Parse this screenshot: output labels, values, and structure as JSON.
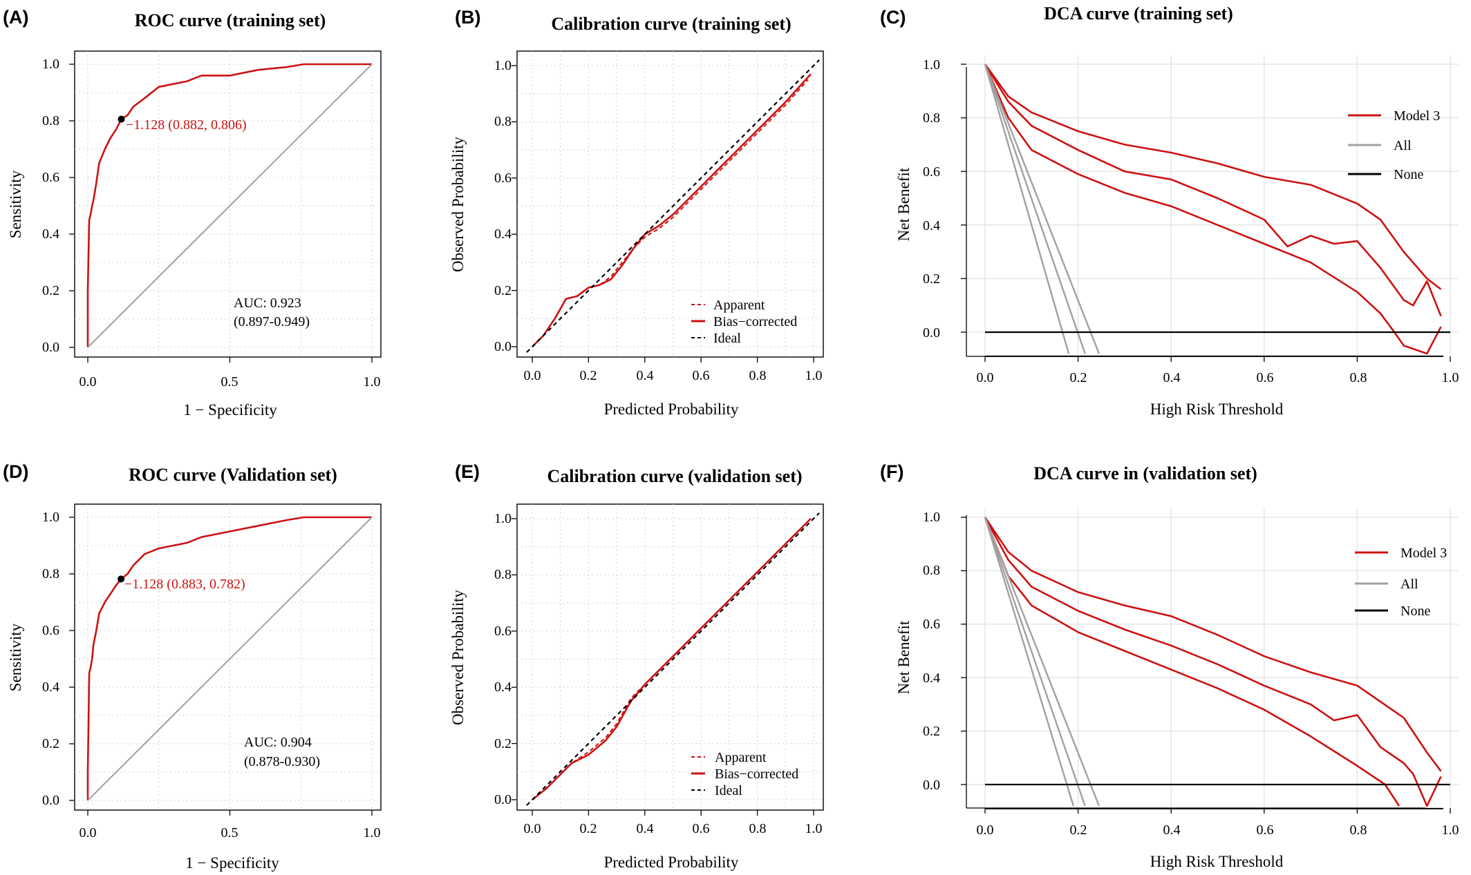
{
  "colors": {
    "model": "#cc1111",
    "gray": "#a0a0a0",
    "black": "#000000",
    "grid": "#e6e6e6"
  },
  "panels": [
    {
      "letter": "(A)",
      "title": "ROC curve (training set)",
      "xlabel": "1 − Specificity",
      "ylabel": "Sensitivity",
      "xticks": [
        "0.0",
        "0.5",
        "1.0"
      ],
      "yticks": [
        "0.0",
        "0.2",
        "0.4",
        "0.6",
        "0.8",
        "1.0"
      ],
      "threshold_label": "−1.128 (0.882, 0.806)",
      "auc_label": "AUC: 0.923",
      "ci_label": "(0.897-0.949)"
    },
    {
      "letter": "(B)",
      "title": "Calibration curve (training set)",
      "xlabel": "Predicted Probability",
      "ylabel": "Observed Probability",
      "xticks": [
        "0.0",
        "0.2",
        "0.4",
        "0.6",
        "0.8",
        "1.0"
      ],
      "yticks": [
        "0.0",
        "0.2",
        "0.4",
        "0.6",
        "0.8",
        "1.0"
      ],
      "legend": [
        "Apparent",
        "Bias−corrected",
        "Ideal"
      ]
    },
    {
      "letter": "(C)",
      "title": "DCA curve (training set)",
      "xlabel": "High Risk Threshold",
      "ylabel": "Net Benefit",
      "xticks": [
        "0.0",
        "0.2",
        "0.4",
        "0.6",
        "0.8",
        "1.0"
      ],
      "yticks": [
        "0.0",
        "0.2",
        "0.4",
        "0.6",
        "0.8",
        "1.0"
      ],
      "legend": [
        "Model 3",
        "All",
        "None"
      ]
    },
    {
      "letter": "(D)",
      "title": "ROC curve (Validation set)",
      "xlabel": "1 − Specificity",
      "ylabel": "Sensitivity",
      "xticks": [
        "0.0",
        "0.5",
        "1.0"
      ],
      "yticks": [
        "0.0",
        "0.2",
        "0.4",
        "0.6",
        "0.8",
        "1.0"
      ],
      "threshold_label": "−1.128 (0.883, 0.782)",
      "auc_label": "AUC: 0.904",
      "ci_label": "(0.878-0.930)"
    },
    {
      "letter": "(E)",
      "title": "Calibration curve (validation set)",
      "xlabel": "Predicted Probability",
      "ylabel": "Observed Probability",
      "xticks": [
        "0.0",
        "0.2",
        "0.4",
        "0.6",
        "0.8",
        "1.0"
      ],
      "yticks": [
        "0.0",
        "0.2",
        "0.4",
        "0.6",
        "0.8",
        "1.0"
      ],
      "legend": [
        "Apparent",
        "Bias−corrected",
        "Ideal"
      ]
    },
    {
      "letter": "(F)",
      "title": "DCA curve in (validation set)",
      "xlabel": "High Risk Threshold",
      "ylabel": "Net Benefit",
      "xticks": [
        "0.0",
        "0.2",
        "0.4",
        "0.6",
        "0.8",
        "1.0"
      ],
      "yticks": [
        "0.0",
        "0.2",
        "0.4",
        "0.6",
        "0.8",
        "1.0"
      ],
      "legend": [
        "Model 3",
        "All",
        "None"
      ]
    }
  ],
  "chart_data": [
    {
      "type": "line",
      "panel": "A",
      "title": "ROC curve (training set)",
      "xlabel": "1 − Specificity",
      "ylabel": "Sensitivity",
      "xlim": [
        0,
        1
      ],
      "ylim": [
        0,
        1
      ],
      "grid": true,
      "x_axis_reversed_specificity": true,
      "series": [
        {
          "name": "",
          "x": [
            0,
            0,
            0.003,
            0.005,
            0.01,
            0.015,
            0.02,
            0.03,
            0.04,
            0.06,
            0.08,
            0.1,
            0.118,
            0.14,
            0.16,
            0.2,
            0.25,
            0.3,
            0.35,
            0.4,
            0.5,
            0.6,
            0.7,
            0.76,
            0.85,
            0.95,
            1.0
          ],
          "y": [
            0,
            0.2,
            0.35,
            0.45,
            0.47,
            0.5,
            0.52,
            0.58,
            0.65,
            0.7,
            0.74,
            0.77,
            0.806,
            0.82,
            0.85,
            0.88,
            0.92,
            0.93,
            0.94,
            0.96,
            0.96,
            0.98,
            0.99,
            1.0,
            1.0,
            1.0,
            1.0
          ]
        },
        {
          "name": "",
          "x": [
            0,
            1
          ],
          "y": [
            0,
            1
          ]
        }
      ],
      "threshold_point": {
        "x": 0.118,
        "y": 0.806
      },
      "annotations": [
        "−1.128 (0.882, 0.806)",
        "AUC: 0.923",
        "(0.897-0.949)"
      ]
    },
    {
      "type": "line",
      "panel": "B",
      "title": "Calibration curve (training set)",
      "xlabel": "Predicted Probability",
      "ylabel": "Observed Probability",
      "xlim": [
        0,
        1
      ],
      "ylim": [
        0,
        1
      ],
      "grid": true,
      "legend_position": "bottom-right",
      "series": [
        {
          "name": "Apparent",
          "x": [
            0.0,
            0.04,
            0.08,
            0.12,
            0.16,
            0.2,
            0.24,
            0.28,
            0.32,
            0.36,
            0.4,
            0.45,
            0.5,
            0.6,
            0.7,
            0.8,
            0.9,
            0.98
          ],
          "y": [
            0.0,
            0.04,
            0.1,
            0.17,
            0.18,
            0.21,
            0.22,
            0.25,
            0.3,
            0.35,
            0.39,
            0.42,
            0.46,
            0.56,
            0.66,
            0.76,
            0.86,
            0.95
          ]
        },
        {
          "name": "Bias−corrected",
          "x": [
            0.0,
            0.04,
            0.08,
            0.12,
            0.16,
            0.2,
            0.24,
            0.28,
            0.32,
            0.36,
            0.4,
            0.45,
            0.5,
            0.6,
            0.7,
            0.8,
            0.9,
            0.99
          ],
          "y": [
            0.0,
            0.04,
            0.1,
            0.17,
            0.18,
            0.21,
            0.22,
            0.24,
            0.29,
            0.35,
            0.4,
            0.43,
            0.47,
            0.57,
            0.67,
            0.77,
            0.87,
            0.97
          ]
        },
        {
          "name": "Ideal",
          "x": [
            -0.02,
            1.02
          ],
          "y": [
            -0.02,
            1.02
          ]
        }
      ]
    },
    {
      "type": "line",
      "panel": "C",
      "title": "DCA curve (training set)",
      "xlabel": "High Risk Threshold",
      "ylabel": "Net Benefit",
      "xlim": [
        0,
        1
      ],
      "ylim": [
        -0.08,
        1.0
      ],
      "grid": true,
      "legend_position": "top-right",
      "series": [
        {
          "name": "Model 3",
          "x": [
            0.0,
            0.05,
            0.1,
            0.2,
            0.3,
            0.4,
            0.5,
            0.6,
            0.7,
            0.8,
            0.85,
            0.9,
            0.95,
            0.98
          ],
          "y": [
            1.0,
            0.88,
            0.82,
            0.75,
            0.7,
            0.67,
            0.63,
            0.58,
            0.55,
            0.48,
            0.42,
            0.3,
            0.2,
            0.16
          ]
        },
        {
          "name": "Model 3",
          "x": [
            0.0,
            0.05,
            0.1,
            0.2,
            0.3,
            0.4,
            0.5,
            0.6,
            0.65,
            0.7,
            0.75,
            0.8,
            0.85,
            0.9,
            0.92,
            0.95,
            0.98
          ],
          "y": [
            1.0,
            0.86,
            0.77,
            0.68,
            0.6,
            0.57,
            0.5,
            0.42,
            0.32,
            0.36,
            0.33,
            0.34,
            0.24,
            0.12,
            0.1,
            0.19,
            0.06
          ]
        },
        {
          "name": "Model 3",
          "x": [
            0.0,
            0.05,
            0.1,
            0.2,
            0.3,
            0.4,
            0.5,
            0.6,
            0.7,
            0.8,
            0.85,
            0.88,
            0.9,
            0.95,
            0.98
          ],
          "y": [
            1.0,
            0.8,
            0.68,
            0.59,
            0.52,
            0.47,
            0.4,
            0.33,
            0.26,
            0.15,
            0.07,
            0.0,
            -0.05,
            -0.08,
            0.02
          ]
        },
        {
          "name": "All",
          "x": [
            0.0,
            0.18
          ],
          "y": [
            1.0,
            -0.08
          ]
        },
        {
          "name": "All",
          "x": [
            0.0,
            0.215
          ],
          "y": [
            1.0,
            -0.08
          ]
        },
        {
          "name": "All",
          "x": [
            0.0,
            0.245
          ],
          "y": [
            1.0,
            -0.08
          ]
        },
        {
          "name": "None",
          "x": [
            0.0,
            1.0
          ],
          "y": [
            0.0,
            0.0
          ]
        }
      ]
    },
    {
      "type": "line",
      "panel": "D",
      "title": "ROC curve (Validation set)",
      "xlabel": "1 − Specificity",
      "ylabel": "Sensitivity",
      "xlim": [
        0,
        1
      ],
      "ylim": [
        0,
        1
      ],
      "grid": true,
      "series": [
        {
          "name": "",
          "x": [
            0,
            0,
            0.003,
            0.005,
            0.01,
            0.015,
            0.02,
            0.03,
            0.04,
            0.06,
            0.08,
            0.1,
            0.117,
            0.14,
            0.16,
            0.2,
            0.25,
            0.3,
            0.35,
            0.4,
            0.5,
            0.6,
            0.7,
            0.76,
            0.85,
            0.95,
            1.0
          ],
          "y": [
            0,
            0.1,
            0.3,
            0.45,
            0.47,
            0.5,
            0.55,
            0.6,
            0.66,
            0.7,
            0.73,
            0.76,
            0.782,
            0.8,
            0.83,
            0.87,
            0.89,
            0.9,
            0.91,
            0.93,
            0.95,
            0.97,
            0.99,
            1.0,
            1.0,
            1.0,
            1.0
          ]
        },
        {
          "name": "",
          "x": [
            0,
            1
          ],
          "y": [
            0,
            1
          ]
        }
      ],
      "threshold_point": {
        "x": 0.117,
        "y": 0.782
      },
      "annotations": [
        "−1.128 (0.883, 0.782)",
        "AUC: 0.904",
        "(0.878-0.930)"
      ]
    },
    {
      "type": "line",
      "panel": "E",
      "title": "Calibration curve (validation set)",
      "xlabel": "Predicted Probability",
      "ylabel": "Observed Probability",
      "xlim": [
        0,
        1
      ],
      "ylim": [
        0,
        1
      ],
      "grid": true,
      "legend_position": "bottom-right",
      "series": [
        {
          "name": "Apparent",
          "x": [
            0.0,
            0.05,
            0.1,
            0.14,
            0.2,
            0.26,
            0.3,
            0.35,
            0.4,
            0.5,
            0.6,
            0.7,
            0.8,
            0.9,
            0.99
          ],
          "y": [
            0.0,
            0.04,
            0.09,
            0.13,
            0.17,
            0.22,
            0.27,
            0.36,
            0.41,
            0.51,
            0.61,
            0.71,
            0.81,
            0.91,
            1.0
          ]
        },
        {
          "name": "Bias−corrected",
          "x": [
            0.0,
            0.05,
            0.1,
            0.14,
            0.2,
            0.26,
            0.3,
            0.35,
            0.4,
            0.5,
            0.6,
            0.7,
            0.8,
            0.9,
            0.99
          ],
          "y": [
            0.0,
            0.04,
            0.09,
            0.13,
            0.16,
            0.21,
            0.26,
            0.35,
            0.41,
            0.51,
            0.61,
            0.71,
            0.81,
            0.91,
            1.0
          ]
        },
        {
          "name": "Ideal",
          "x": [
            -0.02,
            1.02
          ],
          "y": [
            -0.02,
            1.02
          ]
        }
      ]
    },
    {
      "type": "line",
      "panel": "F",
      "title": "DCA curve in (validation set)",
      "xlabel": "High Risk Threshold",
      "ylabel": "Net Benefit",
      "xlim": [
        0,
        1
      ],
      "ylim": [
        -0.08,
        1.0
      ],
      "grid": true,
      "legend_position": "top-right",
      "series": [
        {
          "name": "Model 3",
          "x": [
            0.0,
            0.05,
            0.1,
            0.2,
            0.3,
            0.4,
            0.5,
            0.6,
            0.7,
            0.8,
            0.85,
            0.9,
            0.95,
            0.98
          ],
          "y": [
            1.0,
            0.87,
            0.8,
            0.72,
            0.67,
            0.63,
            0.56,
            0.48,
            0.42,
            0.37,
            0.31,
            0.25,
            0.12,
            0.05
          ]
        },
        {
          "name": "Model 3",
          "x": [
            0.0,
            0.05,
            0.1,
            0.2,
            0.3,
            0.4,
            0.5,
            0.6,
            0.7,
            0.75,
            0.8,
            0.85,
            0.9,
            0.92,
            0.95,
            0.98
          ],
          "y": [
            1.0,
            0.84,
            0.74,
            0.65,
            0.58,
            0.52,
            0.45,
            0.37,
            0.3,
            0.24,
            0.26,
            0.14,
            0.08,
            0.04,
            -0.08,
            0.03
          ]
        },
        {
          "name": "Model 3",
          "x": [
            0.0,
            0.05,
            0.1,
            0.2,
            0.3,
            0.4,
            0.5,
            0.6,
            0.7,
            0.8,
            0.86,
            0.89
          ],
          "y": [
            1.0,
            0.78,
            0.67,
            0.57,
            0.5,
            0.43,
            0.36,
            0.28,
            0.18,
            0.07,
            0.0,
            -0.08
          ]
        },
        {
          "name": "All",
          "x": [
            0.0,
            0.19
          ],
          "y": [
            1.0,
            -0.08
          ]
        },
        {
          "name": "All",
          "x": [
            0.0,
            0.215
          ],
          "y": [
            1.0,
            -0.08
          ]
        },
        {
          "name": "All",
          "x": [
            0.0,
            0.245
          ],
          "y": [
            1.0,
            -0.08
          ]
        },
        {
          "name": "None",
          "x": [
            0.0,
            1.0
          ],
          "y": [
            0.0,
            0.0
          ]
        }
      ]
    }
  ]
}
